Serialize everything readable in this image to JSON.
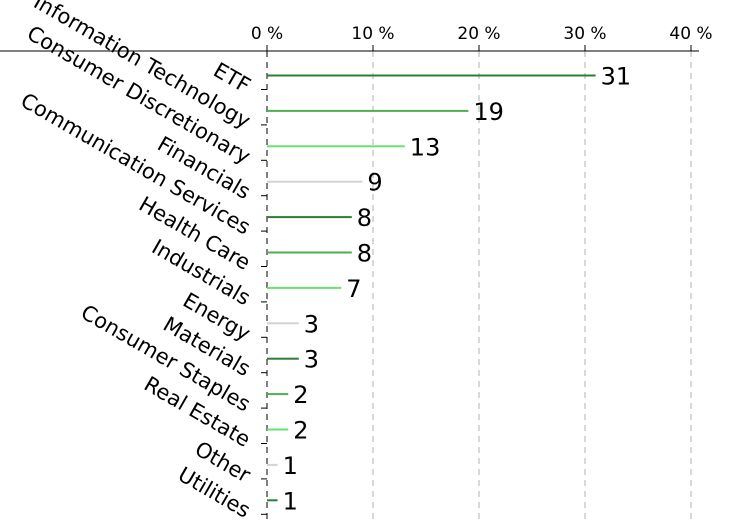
{
  "chart_data": {
    "type": "bar",
    "orientation": "horizontal",
    "title": "",
    "xlabel": "",
    "ylabel": "",
    "xlim": [
      0,
      40
    ],
    "x_ticks": [
      0,
      10,
      20,
      30,
      40
    ],
    "x_tick_labels": [
      "0 %",
      "10 %",
      "20 %",
      "30 %",
      "40 %"
    ],
    "x_axis_position": "top",
    "grid": "vertical dashed",
    "categories": [
      "ETF",
      "Information Technology",
      "Consumer Discretionary",
      "Financials",
      "Communication Services",
      "Health Care",
      "Industrials",
      "Energy",
      "Materials",
      "Consumer Staples",
      "Real Estate",
      "Other",
      "Utilities"
    ],
    "values": [
      31,
      19,
      13,
      9,
      8,
      8,
      7,
      3,
      3,
      2,
      2,
      1,
      1
    ],
    "value_labels": [
      "31",
      "19",
      "13",
      "9",
      "8",
      "8",
      "7",
      "3",
      "3",
      "2",
      "2",
      "1",
      "1"
    ],
    "colors": [
      "#2e7d32",
      "#4caf50",
      "#69e06f",
      "#d3d3d3",
      "#2e7d32",
      "#4caf50",
      "#69e06f",
      "#d3d3d3",
      "#2e7d32",
      "#4caf50",
      "#69e06f",
      "#d3d3d3",
      "#2e7d32"
    ]
  }
}
